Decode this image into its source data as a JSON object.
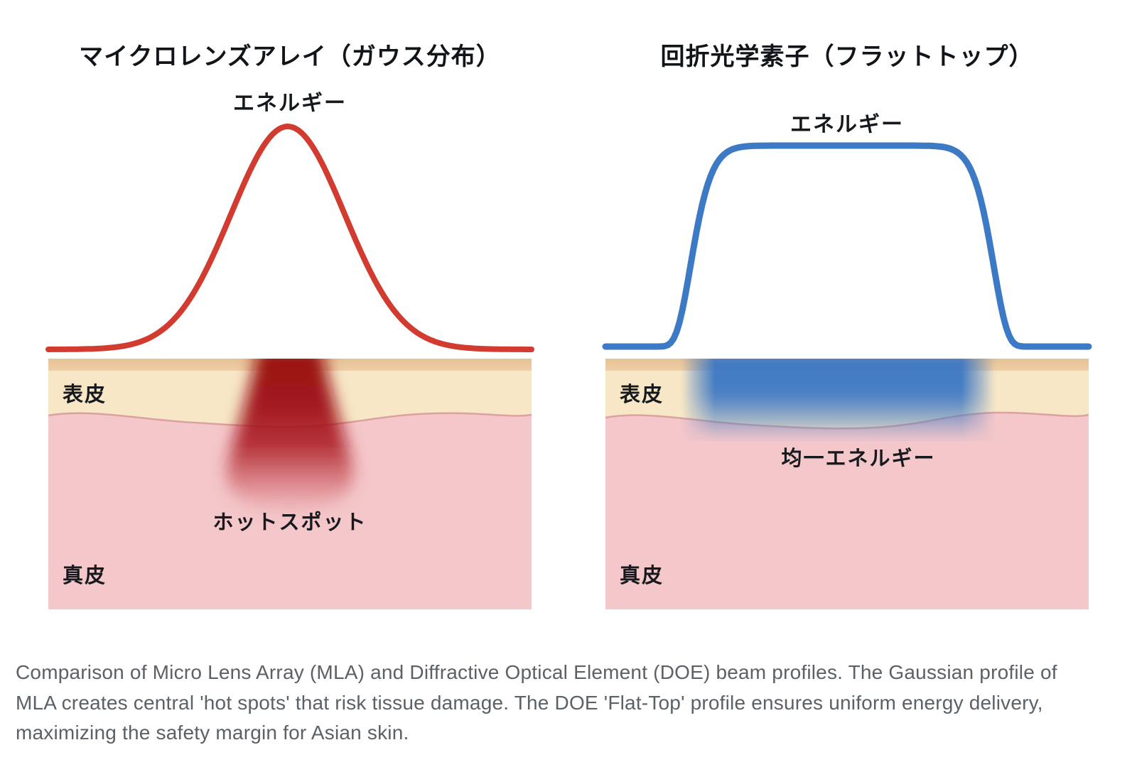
{
  "left_panel": {
    "title": "マイクロレンズアレイ（ガウス分布）",
    "energy_label": "エネルギー",
    "curve": {
      "type": "gaussian",
      "color": "#d23b2f"
    },
    "skin": {
      "epidermis_label": "表皮",
      "dermis_label": "真皮",
      "hotspot_label": "ホットスポット"
    },
    "hotspot_color": "#9e0d14"
  },
  "right_panel": {
    "title": "回折光学素子（フラットトップ）",
    "energy_label": "エネルギー",
    "curve": {
      "type": "flat-top",
      "color": "#3d7ac6"
    },
    "skin": {
      "epidermis_label": "表皮",
      "dermis_label": "真皮",
      "uniform_label": "均一エネルギー"
    },
    "band_color": "#3c79c5"
  },
  "skin_colors": {
    "stratum_corneum": "#ebc89e",
    "epidermis": "#f7e7c7",
    "dermis": "#f4c7ca",
    "dermis_line": "#d89b9b"
  },
  "caption": {
    "color": "#5b6166",
    "lines": [
      "Comparison of Micro Lens Array (MLA) and Diffractive Optical Element (DOE) beam profiles. The Gaussian profile of",
      "MLA creates central 'hot spots' that risk tissue damage. The DOE 'Flat-Top' profile ensures uniform energy delivery,",
      "maximizing the safety margin for Asian skin."
    ]
  }
}
